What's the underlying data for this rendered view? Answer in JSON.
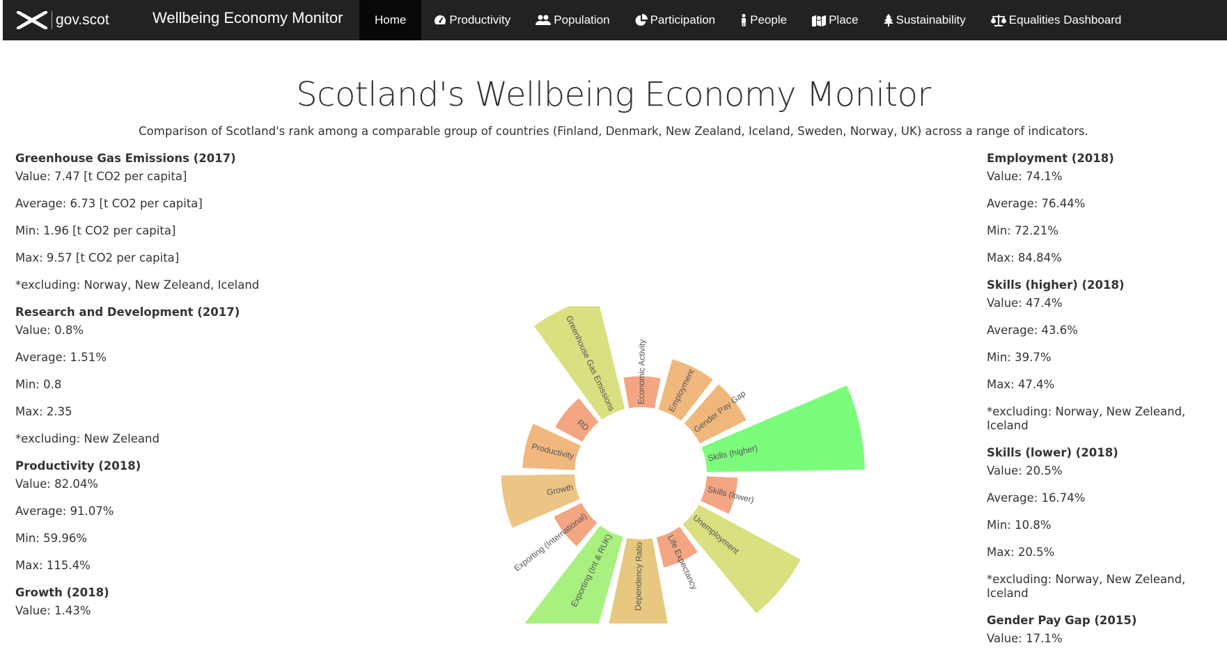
{
  "nav": {
    "logo_text": "gov.scot",
    "brand_title": "Wellbeing Economy Monitor",
    "items": [
      {
        "label": "Home",
        "icon": "",
        "active": true
      },
      {
        "label": "Productivity",
        "icon": "tachometer-icon"
      },
      {
        "label": "Population",
        "icon": "users-icon"
      },
      {
        "label": "Participation",
        "icon": "pie-chart-icon"
      },
      {
        "label": "People",
        "icon": "male-icon"
      },
      {
        "label": "Place",
        "icon": "map-icon"
      },
      {
        "label": "Sustainability",
        "icon": "tree-icon"
      },
      {
        "label": "Equalities Dashboard",
        "icon": "balance-scale-icon"
      }
    ]
  },
  "page": {
    "title": "Scotland's Wellbeing Economy Monitor",
    "subtitle": "Comparison of Scotland's rank among a comparable group of countries (Finland, Denmark, New Zealand, Iceland, Sweden, Norway, UK) across a range of indicators."
  },
  "left_panel": [
    {
      "title": "Greenhouse Gas Emissions (2017)",
      "value": "Value: 7.47 [t CO2 per capita]",
      "average": "Average: 6.73 [t CO2 per capita]",
      "min": "Min: 1.96 [t CO2 per capita]",
      "max": "Max: 9.57 [t CO2 per capita]",
      "note": "*excluding: Norway, New Zeleand, Iceland"
    },
    {
      "title": "Research and Development (2017)",
      "value": "Value: 0.8%",
      "average": "Average: 1.51%",
      "min": "Min: 0.8",
      "max": "Max: 2.35",
      "note": "*excluding: New Zeleand"
    },
    {
      "title": "Productivity (2018)",
      "value": "Value: 82.04%",
      "average": "Average: 91.07%",
      "min": "Min: 59.96%",
      "max": "Max: 115.4%"
    },
    {
      "title": "Growth (2018)",
      "value": "Value: 1.43%"
    }
  ],
  "right_panel": [
    {
      "title": "Employment (2018)",
      "value": "Value: 74.1%",
      "average": "Average: 76.44%",
      "min": "Min: 72.21%",
      "max": "Max: 84.84%"
    },
    {
      "title": "Skills (higher) (2018)",
      "value": "Value: 47.4%",
      "average": "Average: 43.6%",
      "min": "Min: 39.7%",
      "max": "Max: 47.4%",
      "note": "*excluding: Norway, New Zeleand, Iceland"
    },
    {
      "title": "Skills (lower) (2018)",
      "value": "Value: 20.5%",
      "average": "Average: 16.74%",
      "min": "Min: 10.8%",
      "max": "Max: 20.5%",
      "note": "*excluding: Norway, New Zeleand, Iceland"
    },
    {
      "title": "Gender Pay Gap (2015)",
      "value": "Value: 17.1%"
    }
  ],
  "chart_data": {
    "type": "radial-bar",
    "segments": [
      {
        "label": "Economic Activity",
        "value": 1,
        "color": "#f4a582"
      },
      {
        "label": "Employment",
        "value": 2,
        "color": "#f0b87c"
      },
      {
        "label": "Gender Pay Gap",
        "value": 2,
        "color": "#efb87a"
      },
      {
        "label": "Skills (higher)",
        "value": 7,
        "color": "#7cfc7c"
      },
      {
        "label": "Skills (lower)",
        "value": 1,
        "color": "#f4a582"
      },
      {
        "label": "Unemployment",
        "value": 5,
        "color": "#d8e080"
      },
      {
        "label": "Life Expectancy",
        "value": 1,
        "color": "#f4a582"
      },
      {
        "label": "Dependency Ratio",
        "value": 4,
        "color": "#e8c880"
      },
      {
        "label": "Exporting (Int & RUK)",
        "value": 6,
        "color": "#a8f080"
      },
      {
        "label": "Exporting (International)",
        "value": 1,
        "color": "#f4a582"
      },
      {
        "label": "Growth",
        "value": 3,
        "color": "#ecc484"
      },
      {
        "label": "Productivity",
        "value": 2,
        "color": "#f0b87c"
      },
      {
        "label": "RD",
        "value": 1,
        "color": "#f4a582"
      },
      {
        "label": "Greenhouse Gas Emissions",
        "value": 5,
        "color": "#d8e080"
      }
    ]
  }
}
